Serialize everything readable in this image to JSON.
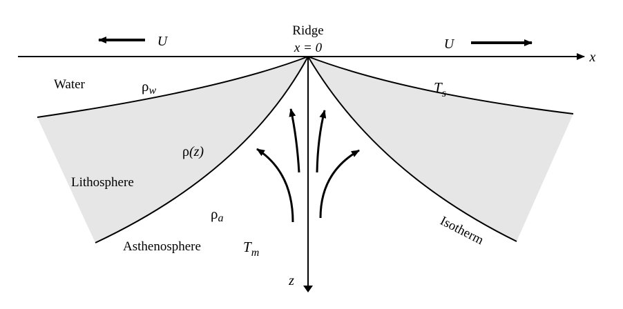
{
  "diagram": {
    "labels": {
      "ridge": "Ridge",
      "x_eq_0": "x = 0",
      "u_left": "U",
      "u_right": "U",
      "x_axis": "x",
      "z_axis": "z",
      "water": "Water",
      "rho_w_sym": "ρ",
      "rho_w_sub": "w",
      "ts_sym": "T",
      "ts_sub": "s",
      "rho_z_sym": "ρ",
      "rho_z_arg": "(z)",
      "lithosphere": "Lithosphere",
      "rho_a_sym": "ρ",
      "rho_a_sub": "a",
      "asthenosphere": "Asthenosphere",
      "tm_sym": "T",
      "tm_sub": "m",
      "isotherm": "Isotherm"
    },
    "colors": {
      "lithosphere_fill": "#e6e6e6",
      "line": "#000000"
    }
  }
}
